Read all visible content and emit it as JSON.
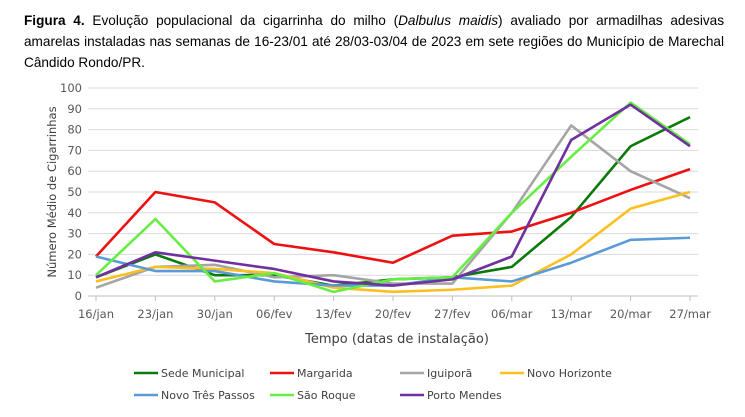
{
  "caption": {
    "label": "Figura 4.",
    "text_before": " Evolução populacional da cigarrinha do milho (",
    "species": "Dalbulus maidis",
    "text_after": ") avaliado por armadilhas adesivas amarelas instaladas nas semanas de 16-23/01 até 28/03-03/04 de 2023 em sete regiões do Município de Marechal Cândido Rondo/PR."
  },
  "chart_data": {
    "type": "line",
    "title": "",
    "xlabel": "Tempo (datas de instalação)",
    "ylabel": "Número Médio de Cigarrinhas",
    "ylim": [
      0,
      100
    ],
    "yticks": [
      0,
      10,
      20,
      30,
      40,
      50,
      60,
      70,
      80,
      90,
      100
    ],
    "grid": true,
    "legend": "bottom",
    "categories": [
      "16/jan",
      "23/jan",
      "30/jan",
      "06/fev",
      "13/fev",
      "20/fev",
      "27/fev",
      "06/mar",
      "13/mar",
      "20/mar",
      "27/mar"
    ],
    "series": [
      {
        "name": "Sede Municipal",
        "color": "#0b7a0b",
        "values": [
          9,
          20,
          10,
          10,
          5,
          8,
          9,
          14,
          38,
          72,
          86
        ]
      },
      {
        "name": "Margarida",
        "color": "#ee1111",
        "values": [
          19,
          50,
          45,
          25,
          21,
          16,
          29,
          31,
          40,
          51,
          61
        ]
      },
      {
        "name": "Iguiporã",
        "color": "#a5a5a5",
        "values": [
          4,
          14,
          15,
          9,
          10,
          6,
          6,
          40,
          82,
          60,
          47
        ]
      },
      {
        "name": "Novo Horizonte",
        "color": "#fbbf20",
        "values": [
          7,
          14,
          13,
          11,
          4,
          2,
          3,
          5,
          20,
          42,
          50
        ]
      },
      {
        "name": "Novo Três Passos",
        "color": "#5b9bd5",
        "values": [
          19,
          12,
          12,
          7,
          5,
          5,
          9,
          7,
          16,
          27,
          28
        ]
      },
      {
        "name": "São Roque",
        "color": "#66ee44",
        "values": [
          10,
          37,
          7,
          11,
          2,
          8,
          9,
          40,
          67,
          93,
          73
        ]
      },
      {
        "name": "Porto Mendes",
        "color": "#7030a0",
        "values": [
          9,
          21,
          17,
          13,
          7,
          5,
          8,
          19,
          75,
          92,
          72
        ]
      }
    ]
  }
}
